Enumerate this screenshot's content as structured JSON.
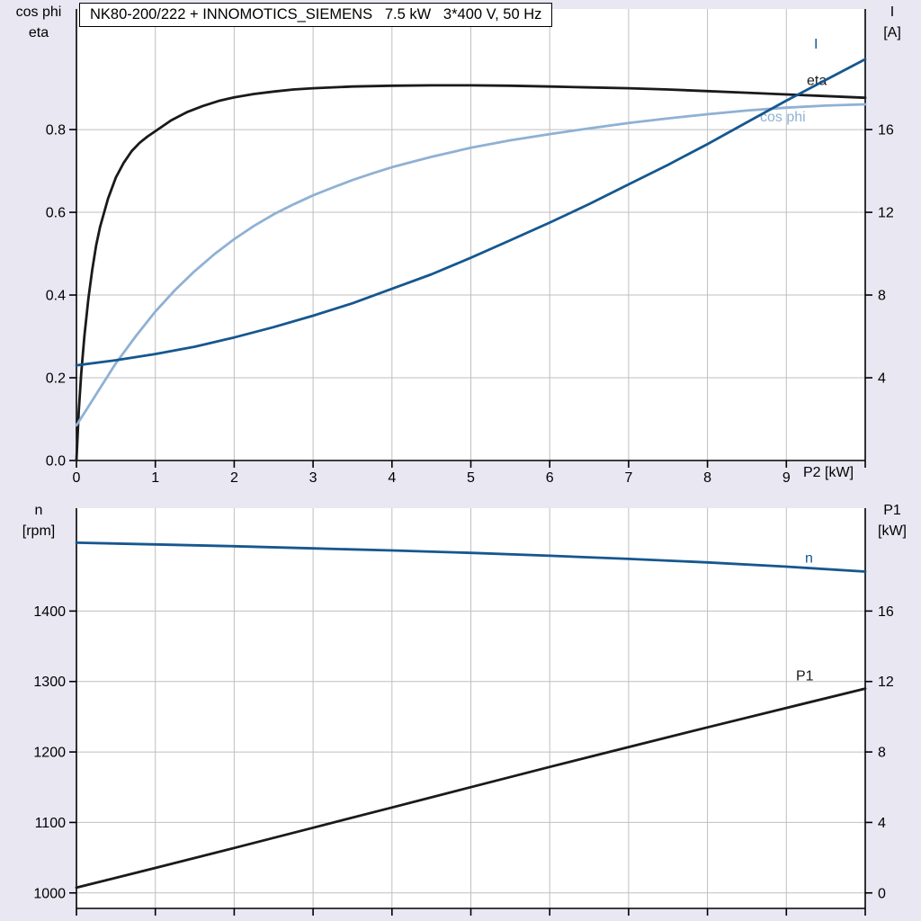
{
  "title": "NK80-200/222 + INNOMOTICS_SIEMENS   7.5 kW   3*400 V, 50 Hz",
  "colors": {
    "background": "#e9e7f2",
    "plot_bg": "#ffffff",
    "grid": "#bfbfbf",
    "axis": "#000000",
    "black": "#1a1a1a",
    "dark_blue": "#16578f",
    "light_blue": "#8fb1d4"
  },
  "chart_data": [
    {
      "type": "line",
      "x_axis": {
        "range": [
          0,
          10
        ],
        "grid_step": 1,
        "tick_labels": [
          "0",
          "1",
          "2",
          "3",
          "4",
          "5",
          "6",
          "7",
          "8",
          "9"
        ],
        "axis_label": "P2 [kW]"
      },
      "left_axis": {
        "title_lines": [
          "cos phi",
          "eta"
        ],
        "range": [
          0,
          1.0915
        ],
        "ticks": [
          0,
          0.2,
          0.4,
          0.6,
          0.8
        ],
        "tick_labels": [
          "0.0",
          "0.2",
          "0.4",
          "0.6",
          "0.8"
        ],
        "grid": [
          0.2,
          0.4,
          0.6,
          0.8
        ]
      },
      "right_axis": {
        "title_lines": [
          "I",
          "[A]"
        ],
        "range": [
          0,
          21.83
        ],
        "ticks": [
          4,
          8,
          12,
          16
        ],
        "tick_labels": [
          "4",
          "8",
          "12",
          "16"
        ]
      },
      "series": [
        {
          "name": "eta",
          "label": "eta",
          "color": "black",
          "axis": "left",
          "label_offset": [
            -65,
            -14
          ],
          "points": [
            [
              0,
              0
            ],
            [
              0.03,
              0.12
            ],
            [
              0.06,
              0.21
            ],
            [
              0.1,
              0.3
            ],
            [
              0.15,
              0.39
            ],
            [
              0.2,
              0.46
            ],
            [
              0.25,
              0.52
            ],
            [
              0.3,
              0.565
            ],
            [
              0.4,
              0.633
            ],
            [
              0.5,
              0.684
            ],
            [
              0.6,
              0.72
            ],
            [
              0.7,
              0.748
            ],
            [
              0.8,
              0.768
            ],
            [
              0.9,
              0.783
            ],
            [
              1,
              0.796
            ],
            [
              1.2,
              0.822
            ],
            [
              1.4,
              0.842
            ],
            [
              1.6,
              0.857
            ],
            [
              1.8,
              0.869
            ],
            [
              2,
              0.878
            ],
            [
              2.25,
              0.886
            ],
            [
              2.5,
              0.892
            ],
            [
              2.75,
              0.897
            ],
            [
              3,
              0.9
            ],
            [
              3.5,
              0.904
            ],
            [
              4,
              0.906
            ],
            [
              4.5,
              0.907
            ],
            [
              5,
              0.907
            ],
            [
              5.5,
              0.906
            ],
            [
              6,
              0.904
            ],
            [
              6.5,
              0.902
            ],
            [
              7,
              0.9
            ],
            [
              7.5,
              0.897
            ],
            [
              8,
              0.893
            ],
            [
              8.5,
              0.889
            ],
            [
              9,
              0.885
            ],
            [
              9.5,
              0.881
            ],
            [
              10,
              0.877
            ]
          ]
        },
        {
          "name": "cos-phi",
          "label": "cos phi",
          "color": "light_blue",
          "axis": "left",
          "label_offset": [
            -117,
            19
          ],
          "points": [
            [
              0,
              0.085
            ],
            [
              0.15,
              0.13
            ],
            [
              0.3,
              0.175
            ],
            [
              0.5,
              0.235
            ],
            [
              0.75,
              0.3
            ],
            [
              1,
              0.36
            ],
            [
              1.25,
              0.412
            ],
            [
              1.5,
              0.458
            ],
            [
              1.75,
              0.499
            ],
            [
              2,
              0.535
            ],
            [
              2.25,
              0.567
            ],
            [
              2.5,
              0.595
            ],
            [
              2.75,
              0.619
            ],
            [
              3,
              0.641
            ],
            [
              3.25,
              0.66
            ],
            [
              3.5,
              0.678
            ],
            [
              3.75,
              0.694
            ],
            [
              4,
              0.709
            ],
            [
              4.5,
              0.734
            ],
            [
              5,
              0.756
            ],
            [
              5.5,
              0.774
            ],
            [
              6,
              0.789
            ],
            [
              6.5,
              0.803
            ],
            [
              7,
              0.816
            ],
            [
              7.5,
              0.827
            ],
            [
              8,
              0.837
            ],
            [
              8.5,
              0.846
            ],
            [
              9,
              0.853
            ],
            [
              9.5,
              0.858
            ],
            [
              10,
              0.861
            ]
          ]
        },
        {
          "name": "current",
          "label": "I",
          "color": "dark_blue",
          "axis": "right",
          "label_offset": [
            -57,
            -12
          ],
          "points": [
            [
              0,
              4.6
            ],
            [
              0.5,
              4.85
            ],
            [
              1,
              5.15
            ],
            [
              1.5,
              5.5
            ],
            [
              2,
              5.95
            ],
            [
              2.5,
              6.45
            ],
            [
              3,
              7.0
            ],
            [
              3.5,
              7.6
            ],
            [
              4,
              8.3
            ],
            [
              4.5,
              9.0
            ],
            [
              5,
              9.8
            ],
            [
              5.5,
              10.65
            ],
            [
              6,
              11.5
            ],
            [
              6.5,
              12.4
            ],
            [
              7,
              13.35
            ],
            [
              7.5,
              14.3
            ],
            [
              8,
              15.3
            ],
            [
              8.5,
              16.35
            ],
            [
              9,
              17.4
            ],
            [
              9.5,
              18.4
            ],
            [
              10,
              19.4
            ]
          ]
        }
      ]
    },
    {
      "type": "line",
      "x_axis": {
        "range": [
          0,
          10
        ],
        "grid_step": 1,
        "tick_labels": [],
        "axis_label": ""
      },
      "left_axis": {
        "title_lines": [
          "n",
          "[rpm]"
        ],
        "range": [
          978,
          1546
        ],
        "ticks": [
          1000,
          1100,
          1200,
          1300,
          1400
        ],
        "tick_labels": [
          "1000",
          "1100",
          "1200",
          "1300",
          "1400"
        ],
        "grid": [
          1000,
          1100,
          1200,
          1300,
          1400
        ]
      },
      "right_axis": {
        "title_lines": [
          "P1",
          "[kW]"
        ],
        "range": [
          -0.88,
          21.84
        ],
        "ticks": [
          0,
          4,
          8,
          12,
          16
        ],
        "tick_labels": [
          "0",
          "4",
          "8",
          "12",
          "16"
        ]
      },
      "series": [
        {
          "name": "speed",
          "label": "n",
          "color": "dark_blue",
          "axis": "left",
          "label_offset": [
            -67,
            -10
          ],
          "points": [
            [
              0,
              1497
            ],
            [
              1,
              1494.5
            ],
            [
              2,
              1492
            ],
            [
              3,
              1489
            ],
            [
              4,
              1486
            ],
            [
              5,
              1482.5
            ],
            [
              6,
              1478.5
            ],
            [
              7,
              1474
            ],
            [
              8,
              1469
            ],
            [
              9,
              1463
            ],
            [
              10,
              1456
            ]
          ]
        },
        {
          "name": "input-power",
          "label": "P1",
          "color": "black",
          "axis": "right",
          "label_offset": [
            -77,
            -9
          ],
          "points": [
            [
              0,
              0.3
            ],
            [
              1,
              1.42
            ],
            [
              2,
              2.55
            ],
            [
              3,
              3.7
            ],
            [
              4,
              4.85
            ],
            [
              5,
              6.0
            ],
            [
              6,
              7.15
            ],
            [
              7,
              8.28
            ],
            [
              8,
              9.4
            ],
            [
              9,
              10.5
            ],
            [
              10,
              11.6
            ]
          ]
        }
      ]
    }
  ]
}
